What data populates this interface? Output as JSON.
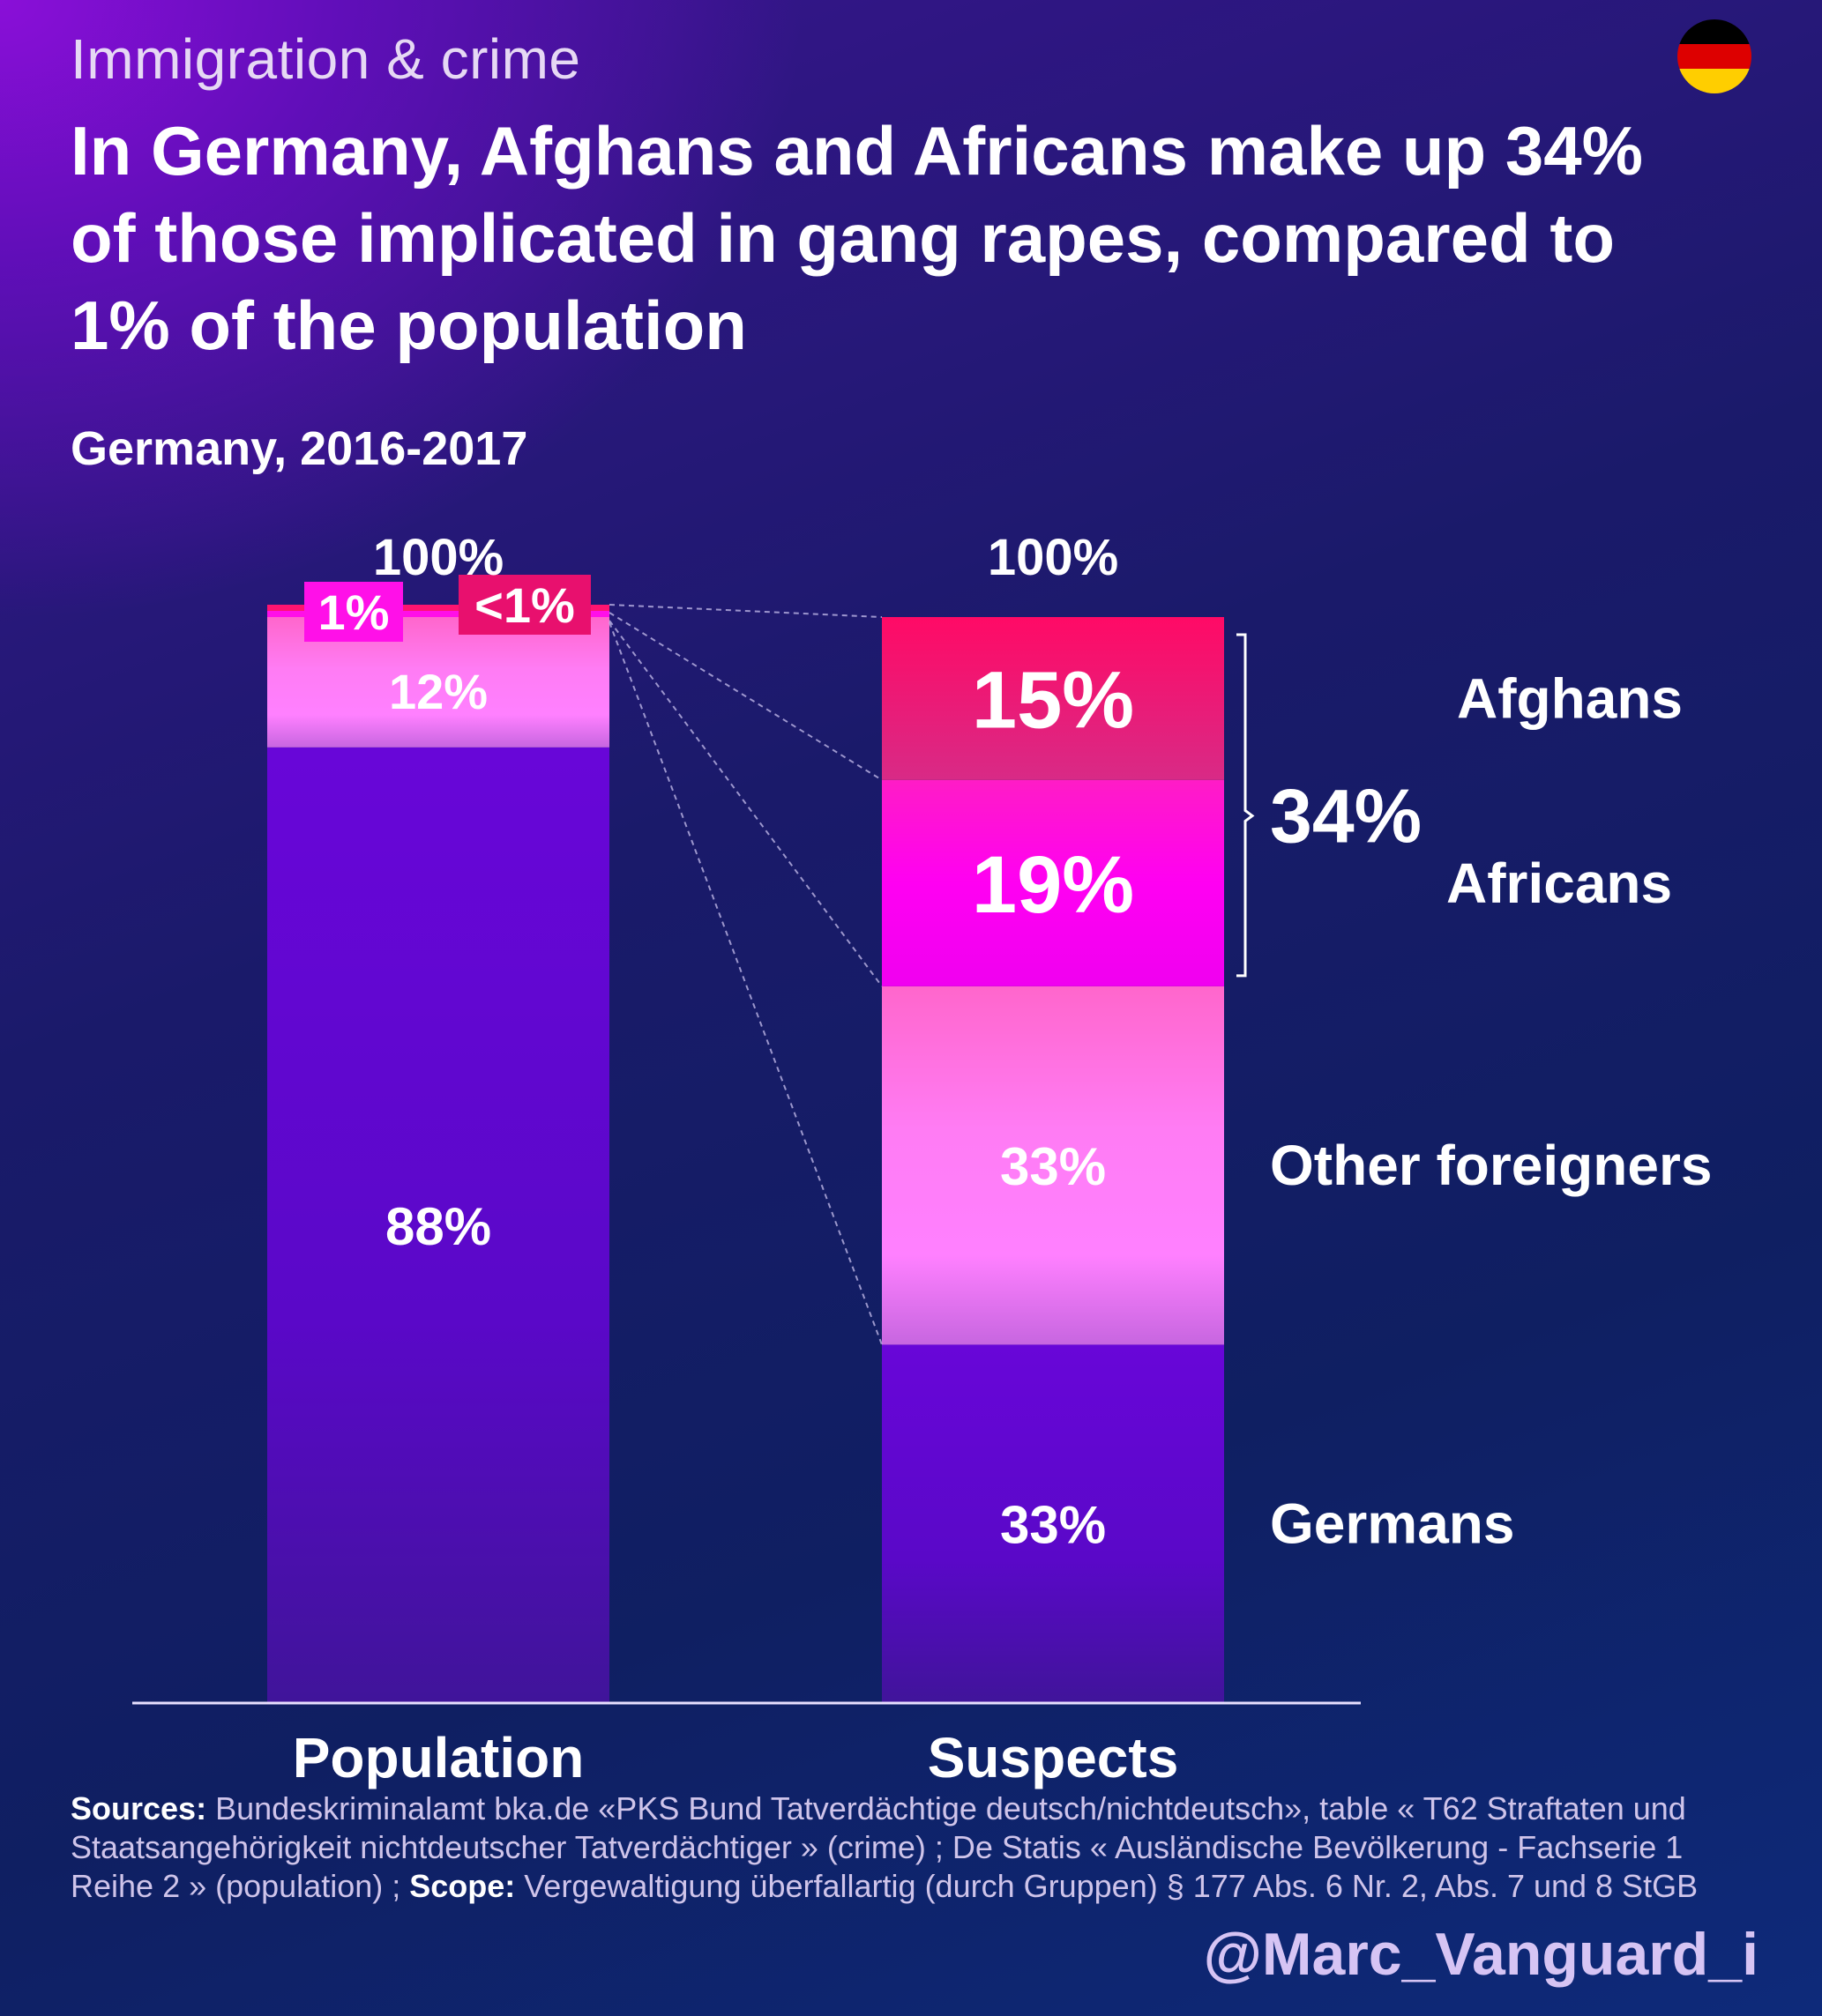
{
  "header": {
    "kicker": "Immigration & crime",
    "title": "In Germany, Afghans and Africans make up 34% of those implicated in gang rapes, compared to 1% of the population",
    "subtitle": "Germany, 2016-2017",
    "flag_icon": "germany-flag-icon",
    "flag_colors": [
      "#000000",
      "#dd0000",
      "#ffce00"
    ]
  },
  "chart_data": {
    "type": "bar",
    "stacked": true,
    "categories": [
      "Population",
      "Suspects"
    ],
    "totals_label": [
      "100%",
      "100%"
    ],
    "series": [
      {
        "name": "Germans",
        "values": [
          88,
          33
        ],
        "labels": [
          "88%",
          "33%"
        ],
        "color": "#6a08d8"
      },
      {
        "name": "Other foreigners",
        "values": [
          12,
          33
        ],
        "labels": [
          "12%",
          "33%"
        ],
        "color": "#ff7af2"
      },
      {
        "name": "Africans",
        "values": [
          1,
          19
        ],
        "labels": [
          "1%",
          "19%"
        ],
        "color": "#ff10e8"
      },
      {
        "name": "Afghans",
        "values": [
          0.4,
          15
        ],
        "labels": [
          "<1%",
          "15%"
        ],
        "color": "#ff1470"
      }
    ],
    "bracket": {
      "label": "34%",
      "groups": [
        "Afghans",
        "Africans"
      ]
    },
    "ylim": [
      0,
      100
    ],
    "grid": false,
    "legend": "right of bars"
  },
  "footer": {
    "sources_label": "Sources:",
    "sources_text": " Bundeskriminalamt bka.de «PKS Bund Tatverdächtige deutsch/nichtdeutsch», table « T62 Straftaten und Staatsangehörigkeit nichtdeutscher Tatverdächtiger » (crime) ; De Statis « Ausländische Bevölkerung - Fachserie 1 Reihe 2 » (population) ; ",
    "scope_label": "Scope:",
    "scope_text": " Vergewaltigung überfallartig (durch Gruppen) § 177 Abs. 6 Nr. 2, Abs. 7 und 8 StGB",
    "handle": "@Marc_Vanguard_i"
  }
}
